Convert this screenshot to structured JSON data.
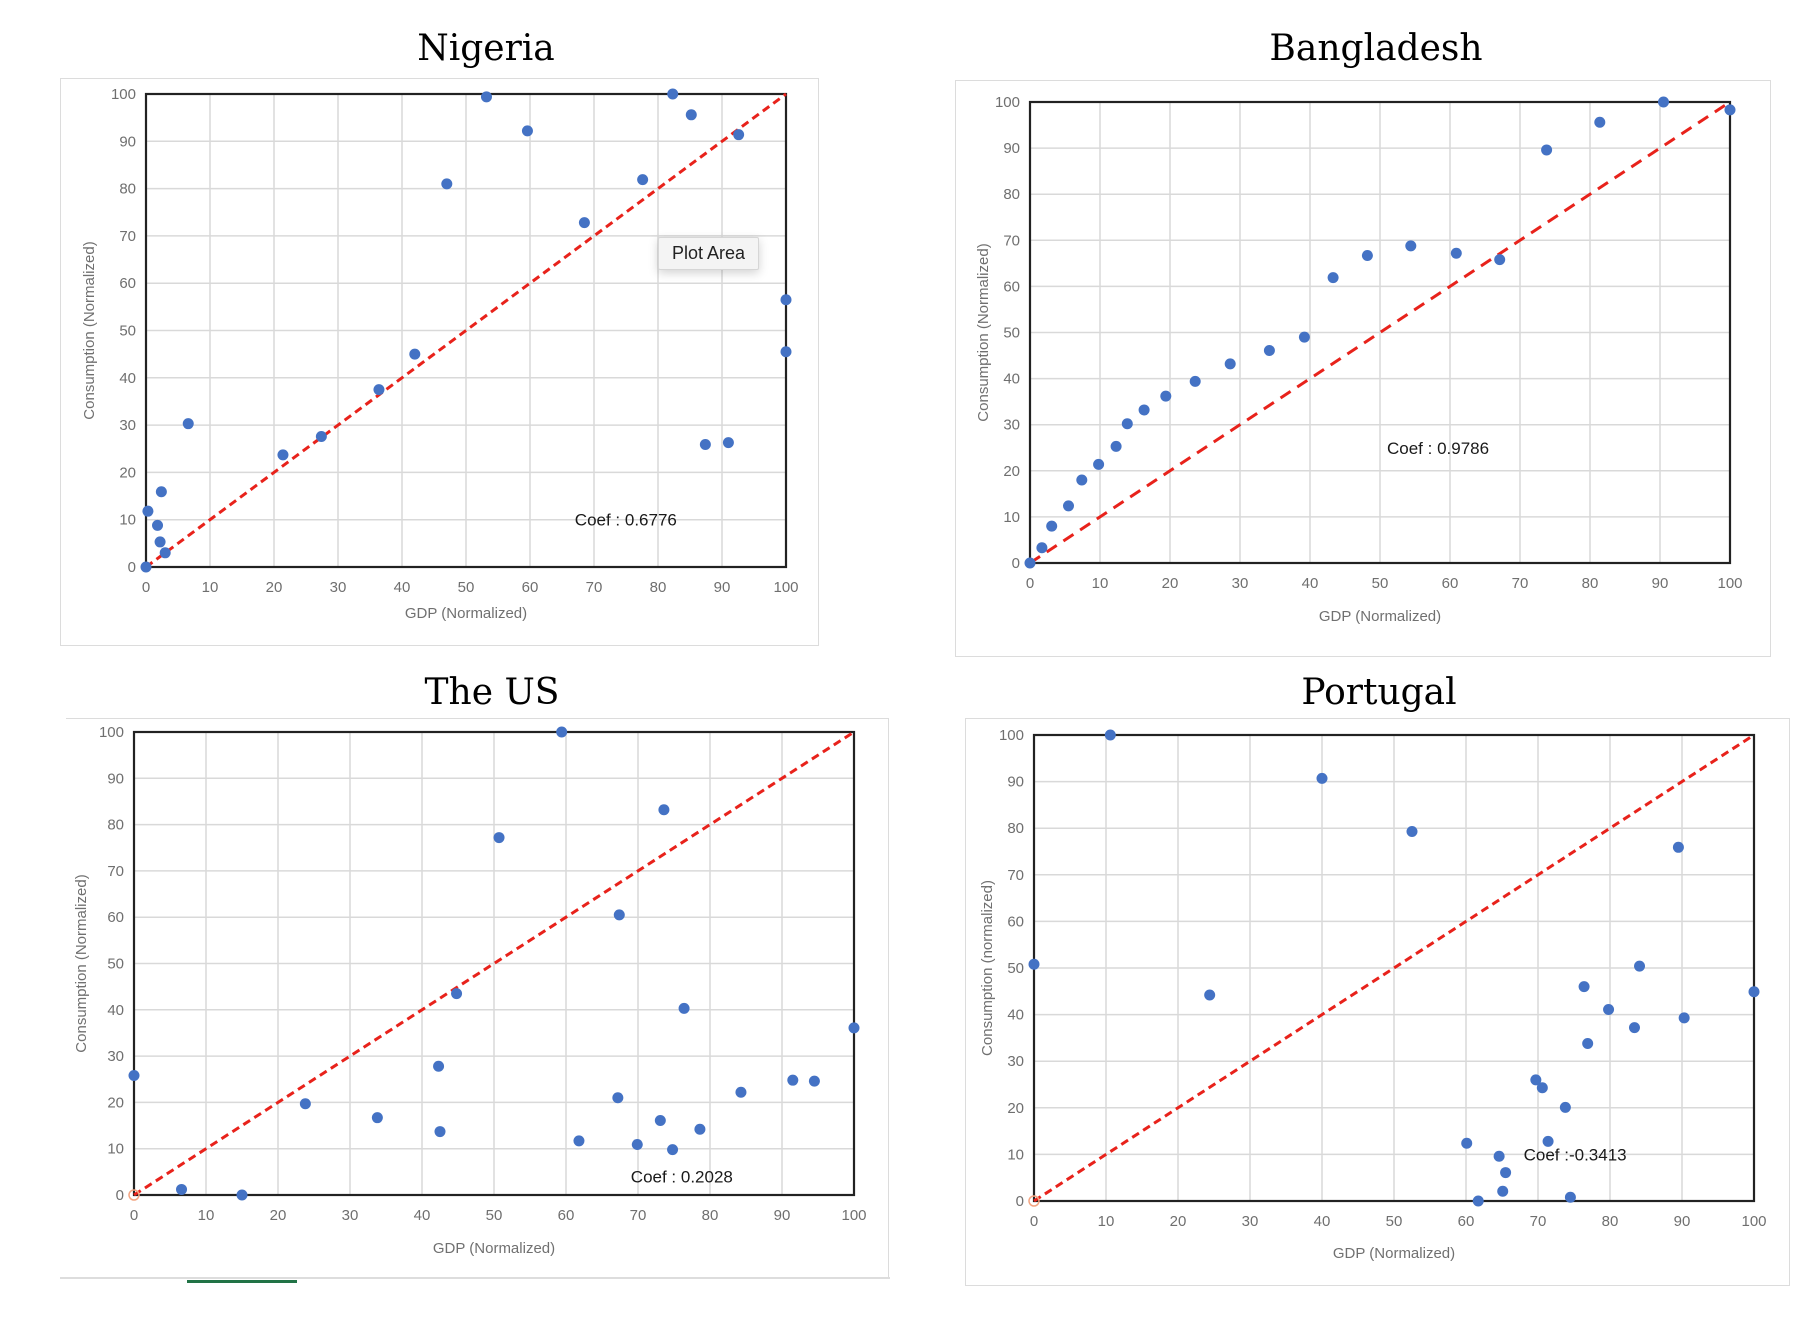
{
  "colors": {
    "point": "#4472c4",
    "diagonal": "#e8221b",
    "origin_marker": "#f4a582",
    "grid": "#d9d9d9",
    "frame": "#222222"
  },
  "tooltip": {
    "label": "Plot Area"
  },
  "chart_data": [
    {
      "id": "nigeria",
      "type": "scatter",
      "title": "Nigeria",
      "xlabel": "GDP (Normalized)",
      "ylabel": "Consumption (Normalized)",
      "xlim": [
        0,
        100
      ],
      "ylim": [
        0,
        100
      ],
      "xticks": [
        "0",
        "10",
        "20",
        "30",
        "40",
        "50",
        "60",
        "70",
        "80",
        "90",
        "100"
      ],
      "yticks": [
        "0",
        "10",
        "20",
        "30",
        "40",
        "50",
        "60",
        "70",
        "80",
        "90",
        "100"
      ],
      "grid": true,
      "reference_line": "y = x (dashed)",
      "annotation": "Coef : 0.6776",
      "annotation_pos": [
        67,
        10
      ],
      "points": [
        [
          0,
          0
        ],
        [
          0.3,
          11.8
        ],
        [
          1.8,
          8.8
        ],
        [
          2.2,
          5.3
        ],
        [
          2.4,
          15.9
        ],
        [
          3,
          3
        ],
        [
          6.6,
          30.3
        ],
        [
          21.4,
          23.7
        ],
        [
          27.4,
          27.6
        ],
        [
          36.4,
          37.5
        ],
        [
          42,
          45
        ],
        [
          47,
          81
        ],
        [
          53.2,
          99.4
        ],
        [
          59.6,
          92.2
        ],
        [
          68.5,
          72.8
        ],
        [
          77.6,
          81.9
        ],
        [
          82.3,
          100
        ],
        [
          85.2,
          95.6
        ],
        [
          87.4,
          25.9
        ],
        [
          91,
          26.3
        ],
        [
          92.6,
          91.4
        ],
        [
          100,
          56.5
        ],
        [
          100,
          45.5
        ]
      ]
    },
    {
      "id": "bangladesh",
      "type": "scatter",
      "title": "Bangladesh",
      "xlabel": "GDP (Normalized)",
      "ylabel": "Consumption (Normalized)",
      "xlim": [
        0,
        100
      ],
      "ylim": [
        0,
        100
      ],
      "xticks": [
        "0",
        "10",
        "20",
        "30",
        "40",
        "50",
        "60",
        "70",
        "80",
        "90",
        "100"
      ],
      "yticks": [
        "0",
        "10",
        "20",
        "30",
        "40",
        "50",
        "60",
        "70",
        "80",
        "90",
        "100"
      ],
      "grid": true,
      "reference_line": "y = x (dashed)",
      "annotation": "Coef : 0.9786",
      "annotation_pos": [
        51,
        25
      ],
      "points": [
        [
          0,
          0
        ],
        [
          1.7,
          3.3
        ],
        [
          3.1,
          8
        ],
        [
          5.5,
          12.4
        ],
        [
          7.4,
          18
        ],
        [
          9.8,
          21.4
        ],
        [
          12.3,
          25.3
        ],
        [
          13.9,
          30.2
        ],
        [
          16.3,
          33.2
        ],
        [
          19.4,
          36.2
        ],
        [
          23.6,
          39.4
        ],
        [
          28.6,
          43.2
        ],
        [
          34.2,
          46.1
        ],
        [
          39.2,
          49
        ],
        [
          43.3,
          61.9
        ],
        [
          48.2,
          66.7
        ],
        [
          54.4,
          68.8
        ],
        [
          60.9,
          67.2
        ],
        [
          67.1,
          65.8
        ],
        [
          73.8,
          89.6
        ],
        [
          81.4,
          95.6
        ],
        [
          90.5,
          100
        ],
        [
          100,
          98.3
        ]
      ]
    },
    {
      "id": "us",
      "type": "scatter",
      "title": "The US",
      "xlabel": "GDP (Normalized)",
      "ylabel": "Consumption (Normalized)",
      "xlim": [
        0,
        100
      ],
      "ylim": [
        0,
        100
      ],
      "xticks": [
        "0",
        "10",
        "20",
        "30",
        "40",
        "50",
        "60",
        "70",
        "80",
        "90",
        "100"
      ],
      "yticks": [
        "0",
        "10",
        "20",
        "30",
        "40",
        "50",
        "60",
        "70",
        "80",
        "90",
        "100"
      ],
      "grid": true,
      "reference_line": "y = x (dashed)",
      "annotation": "Coef : 0.2028",
      "annotation_pos": [
        69,
        4
      ],
      "points": [
        [
          0,
          25.8
        ],
        [
          6.6,
          1.2
        ],
        [
          15,
          0
        ],
        [
          23.8,
          19.7
        ],
        [
          33.8,
          16.7
        ],
        [
          42.3,
          27.8
        ],
        [
          42.5,
          13.7
        ],
        [
          44.8,
          43.5
        ],
        [
          50.7,
          77.2
        ],
        [
          59.4,
          100
        ],
        [
          61.8,
          11.7
        ],
        [
          67.2,
          21
        ],
        [
          67.4,
          60.5
        ],
        [
          69.9,
          10.9
        ],
        [
          73.1,
          16.1
        ],
        [
          73.6,
          83.2
        ],
        [
          74.8,
          9.8
        ],
        [
          76.4,
          40.3
        ],
        [
          78.6,
          14.2
        ],
        [
          84.3,
          22.2
        ],
        [
          91.5,
          24.8
        ],
        [
          94.5,
          24.6
        ],
        [
          100,
          36.1
        ]
      ]
    },
    {
      "id": "portugal",
      "type": "scatter",
      "title": "Portugal",
      "xlabel": "GDP (Normalized)",
      "ylabel": "Consumption (normalized)",
      "xlim": [
        0,
        100
      ],
      "ylim": [
        0,
        100
      ],
      "xticks": [
        "0",
        "10",
        "20",
        "30",
        "40",
        "50",
        "60",
        "70",
        "80",
        "90",
        "100"
      ],
      "yticks": [
        "0",
        "10",
        "20",
        "30",
        "40",
        "50",
        "60",
        "70",
        "80",
        "90",
        "100"
      ],
      "grid": true,
      "reference_line": "y = x (dashed)",
      "annotation": "Coef :-0.3413",
      "annotation_pos": [
        68,
        10
      ],
      "points": [
        [
          0,
          50.8
        ],
        [
          10.6,
          100
        ],
        [
          24.4,
          44.2
        ],
        [
          40,
          90.7
        ],
        [
          52.5,
          79.3
        ],
        [
          60.1,
          12.4
        ],
        [
          61.7,
          0
        ],
        [
          64.6,
          9.6
        ],
        [
          65.1,
          2.1
        ],
        [
          65.5,
          6.1
        ],
        [
          69.7,
          26
        ],
        [
          70.6,
          24.3
        ],
        [
          71.4,
          12.8
        ],
        [
          73.8,
          20.1
        ],
        [
          74.5,
          0.8
        ],
        [
          76.4,
          46
        ],
        [
          76.9,
          33.8
        ],
        [
          79.8,
          41.1
        ],
        [
          83.4,
          37.2
        ],
        [
          84.1,
          50.4
        ],
        [
          89.5,
          75.9
        ],
        [
          90.3,
          39.3
        ],
        [
          100,
          44.9
        ]
      ]
    }
  ]
}
